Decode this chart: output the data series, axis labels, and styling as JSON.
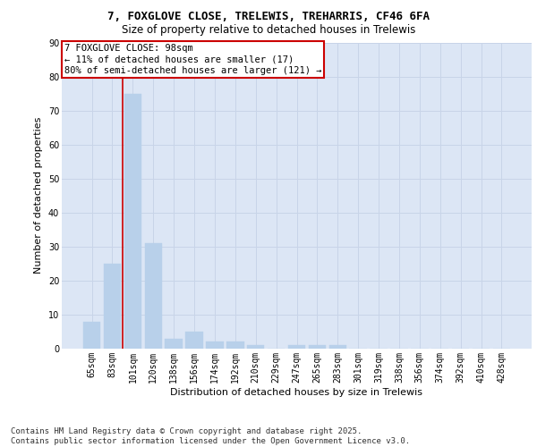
{
  "title1": "7, FOXGLOVE CLOSE, TRELEWIS, TREHARRIS, CF46 6FA",
  "title2": "Size of property relative to detached houses in Trelewis",
  "xlabel": "Distribution of detached houses by size in Trelewis",
  "ylabel": "Number of detached properties",
  "categories": [
    "65sqm",
    "83sqm",
    "101sqm",
    "120sqm",
    "138sqm",
    "156sqm",
    "174sqm",
    "192sqm",
    "210sqm",
    "229sqm",
    "247sqm",
    "265sqm",
    "283sqm",
    "301sqm",
    "319sqm",
    "338sqm",
    "356sqm",
    "374sqm",
    "392sqm",
    "410sqm",
    "428sqm"
  ],
  "values": [
    8,
    25,
    75,
    31,
    3,
    5,
    2,
    2,
    1,
    0,
    1,
    1,
    1,
    0,
    0,
    0,
    0,
    0,
    0,
    0,
    0
  ],
  "bar_color": "#b8d0ea",
  "bar_edge_color": "#b8d0ea",
  "grid_color": "#c8d4e8",
  "background_color": "#dce6f5",
  "vline_color": "#cc0000",
  "vline_pos": 1.5,
  "annotation_text": "7 FOXGLOVE CLOSE: 98sqm\n← 11% of detached houses are smaller (17)\n80% of semi-detached houses are larger (121) →",
  "annotation_box_color": "#ffffff",
  "annotation_box_edge": "#cc0000",
  "ylim": [
    0,
    90
  ],
  "yticks": [
    0,
    10,
    20,
    30,
    40,
    50,
    60,
    70,
    80,
    90
  ],
  "footer": "Contains HM Land Registry data © Crown copyright and database right 2025.\nContains public sector information licensed under the Open Government Licence v3.0.",
  "title_fontsize": 9,
  "subtitle_fontsize": 8.5,
  "axis_label_fontsize": 8,
  "tick_fontsize": 7,
  "annotation_fontsize": 7.5,
  "footer_fontsize": 6.5
}
